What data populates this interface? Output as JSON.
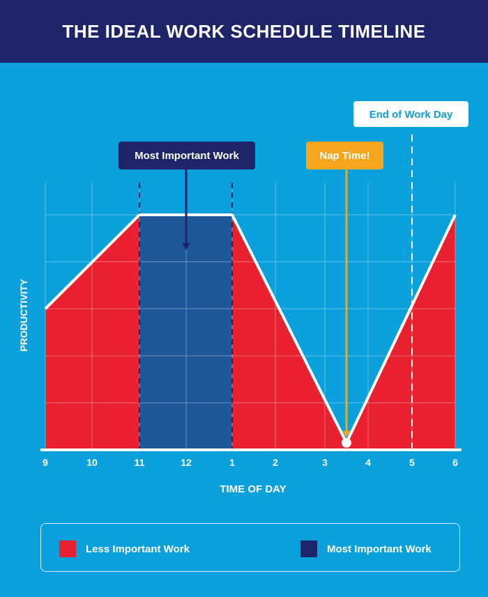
{
  "header": {
    "title": "THE IDEAL WORK SCHEDULE TIMELINE"
  },
  "colors": {
    "background": "#0aa0dc",
    "header": "#1f2468",
    "less_important": "#e8202f",
    "most_important": "#1e5898",
    "most_important_callout": "#1f2468",
    "nap": "#f6a51e",
    "line": "#ffffff"
  },
  "chart_data": {
    "type": "area",
    "x_ticks": [
      "9",
      "10",
      "11",
      "12",
      "1",
      "2",
      "3",
      "4",
      "5",
      "6"
    ],
    "x": [
      9,
      11,
      13,
      15.5,
      18
    ],
    "y": [
      0.6,
      1.0,
      1.0,
      0.03,
      1.0
    ],
    "xlim": [
      9,
      18
    ],
    "ylim": [
      0,
      1
    ],
    "xlabel": "TIME OF DAY",
    "ylabel": "PRODUCTIVITY",
    "grid": true,
    "regions": [
      {
        "name": "Less Important Work",
        "from": 9,
        "to": 11
      },
      {
        "name": "Most Important Work",
        "from": 11,
        "to": 13
      },
      {
        "name": "Less Important Work",
        "from": 13,
        "to": 18
      }
    ],
    "annotations": [
      {
        "text": "Most Important Work",
        "x": 12,
        "y": 0.85
      },
      {
        "text": "Nap Time!",
        "x": 15.5,
        "y": 0.03
      },
      {
        "text": "End of Work Day",
        "x": 17
      }
    ]
  },
  "legend": {
    "items": [
      {
        "label": "Less Important Work",
        "color": "#e8202f"
      },
      {
        "label": "Most Important Work",
        "color": "#1f2468"
      }
    ]
  }
}
